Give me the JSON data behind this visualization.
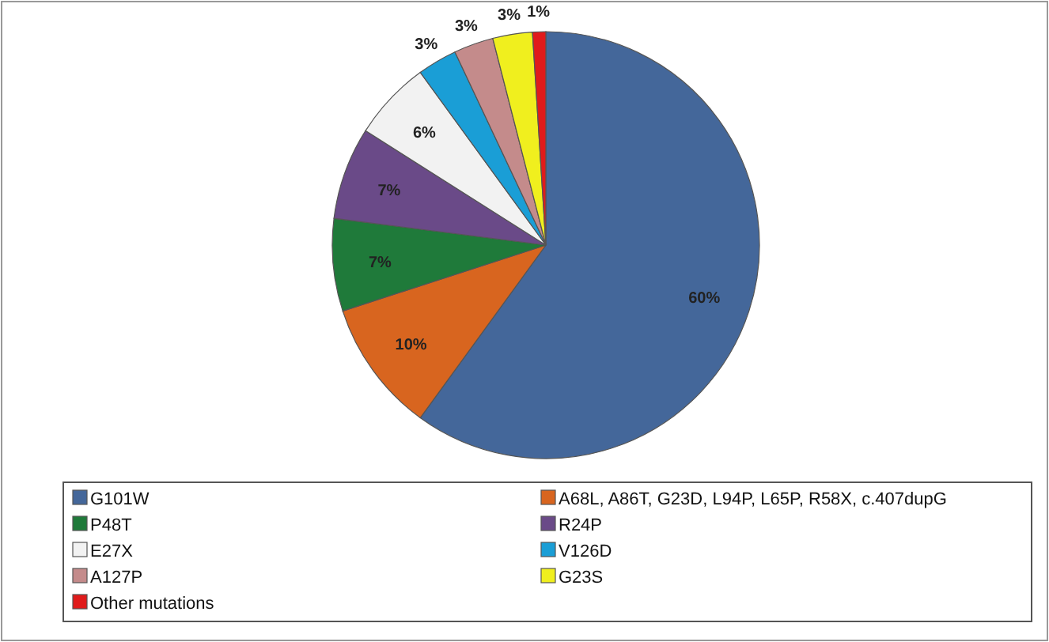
{
  "chart_data": {
    "type": "pie",
    "categories": [
      "G101W",
      "A68L, A86T, G23D, L94P, L65P, R58X, c.407dupG",
      "P48T",
      "R24P",
      "E27X",
      "V126D",
      "A127P",
      "G23S",
      "Other mutations"
    ],
    "values": [
      60,
      10,
      7,
      7,
      6,
      3,
      3,
      3,
      1
    ],
    "value_labels": [
      "60%",
      "10%",
      "7%",
      "7%",
      "6%",
      "3%",
      "3%",
      "3%",
      "1%"
    ],
    "colors": [
      "#44679a",
      "#d8651f",
      "#1f7a3a",
      "#6a4a88",
      "#f2f2f2",
      "#1a9ed6",
      "#c48b8b",
      "#f0ef1e",
      "#e01b1b"
    ],
    "legend": "bottom"
  }
}
